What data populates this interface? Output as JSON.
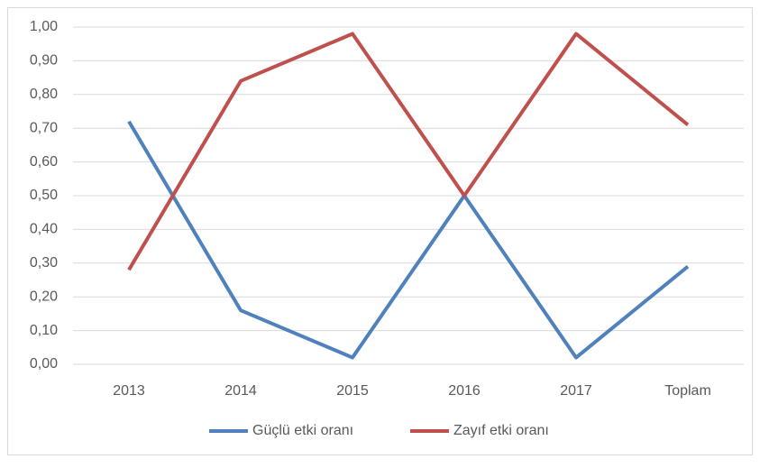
{
  "chart_data": {
    "type": "line",
    "categories": [
      "2013",
      "2014",
      "2015",
      "2016",
      "2017",
      "Toplam"
    ],
    "series": [
      {
        "name": "Güçlü etki oranı",
        "color": "#4f81bd",
        "values": [
          0.72,
          0.16,
          0.02,
          0.5,
          0.02,
          0.29
        ]
      },
      {
        "name": "Zayıf etki oranı",
        "color": "#c0504d",
        "values": [
          0.28,
          0.84,
          0.98,
          0.5,
          0.98,
          0.71
        ]
      }
    ],
    "ylim": [
      0,
      1
    ],
    "yticks": [
      {
        "value": 0,
        "label": "0,00"
      },
      {
        "value": 0.1,
        "label": "0,10"
      },
      {
        "value": 0.2,
        "label": "0,20"
      },
      {
        "value": 0.3,
        "label": "0,30"
      },
      {
        "value": 0.4,
        "label": "0,40"
      },
      {
        "value": 0.5,
        "label": "0,50"
      },
      {
        "value": 0.6,
        "label": "0,60"
      },
      {
        "value": 0.7,
        "label": "0,70"
      },
      {
        "value": 0.8,
        "label": "0,80"
      },
      {
        "value": 0.9,
        "label": "0,90"
      },
      {
        "value": 1,
        "label": "1,00"
      }
    ],
    "grid": true,
    "legend": "bottom"
  }
}
